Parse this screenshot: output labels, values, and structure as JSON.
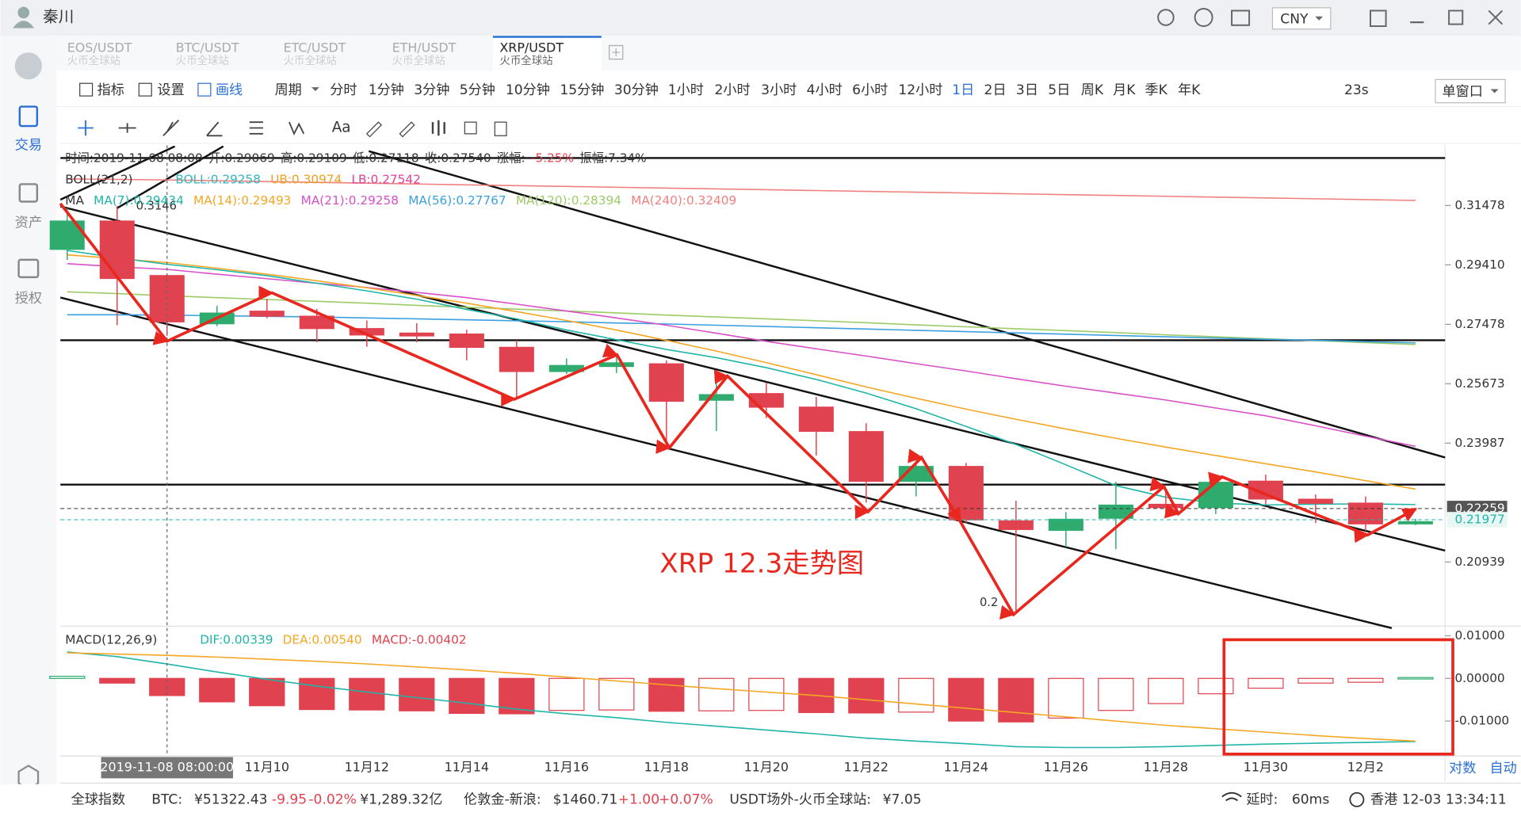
{
  "window": {
    "user": "秦川",
    "currency": "CNY"
  },
  "tabs": [
    {
      "pair": "EOS/USDT",
      "exchange": "火币全球站"
    },
    {
      "pair": "BTC/USDT",
      "exchange": "火币全球站"
    },
    {
      "pair": "ETC/USDT",
      "exchange": "火币全球站"
    },
    {
      "pair": "ETH/USDT",
      "exchange": "火币全球站"
    },
    {
      "pair": "XRP/USDT",
      "exchange": "火币全球站"
    }
  ],
  "active_tab": 4,
  "sidebar": [
    "交易",
    "资产",
    "授权"
  ],
  "toolbar": {
    "tools": [
      "指标",
      "设置",
      "画线"
    ],
    "period_label": "周期",
    "periods": [
      "分时",
      "1分钟",
      "3分钟",
      "5分钟",
      "10分钟",
      "15分钟",
      "30分钟",
      "1小时",
      "2小时",
      "3小时",
      "4小时",
      "6小时",
      "12小时",
      "1日",
      "2日",
      "3日",
      "5日",
      "周K",
      "月K",
      "季K",
      "年K"
    ],
    "active_period": 13,
    "countdown": "23s",
    "window_mode": "单窗口",
    "text_tool": "Aa"
  },
  "legend": {
    "time_row": [
      {
        "text": "时间:2019-11-08 08:00",
        "color": "#333"
      },
      {
        "text": "开:0.29069",
        "color": "#333"
      },
      {
        "text": "高:0.29109",
        "color": "#333"
      },
      {
        "text": "低:0.27118",
        "color": "#333"
      },
      {
        "text": "收:0.27540",
        "color": "#333"
      },
      {
        "text": "涨幅:",
        "color": "#333"
      },
      {
        "text": "-5.25%",
        "color": "#e0424f"
      },
      {
        "text": "振幅:7.34%",
        "color": "#333"
      }
    ],
    "boll_row": [
      {
        "text": "BOLL(21,2)",
        "color": "#333"
      },
      {
        "text": "BOLL:0.29258",
        "color": "#34b6c2"
      },
      {
        "text": "UB:0.30974",
        "color": "#f0a020"
      },
      {
        "text": "LB:0.27542",
        "color": "#e0409a"
      }
    ],
    "ma_row": [
      {
        "text": "MA",
        "color": "#333"
      },
      {
        "text": "MA(7):0.29434",
        "color": "#1fb5a8"
      },
      {
        "text": "MA(14):0.29493",
        "color": "#f5a623"
      },
      {
        "text": "MA(21):0.29258",
        "color": "#d94fc8"
      },
      {
        "text": "MA(56):0.27767",
        "color": "#3aa0e0"
      },
      {
        "text": "MA(120):0.28394",
        "color": "#9ccc65"
      },
      {
        "text": "MA(240):0.32409",
        "color": "#f08080"
      }
    ],
    "macd_row": [
      {
        "text": "MACD(12,26,9)",
        "color": "#333"
      },
      {
        "text": "DIF:0.00339",
        "color": "#1fb5a8"
      },
      {
        "text": "DEA:0.00540",
        "color": "#f5a623"
      },
      {
        "text": "MACD:-0.00402",
        "color": "#e0424f"
      }
    ]
  },
  "annotations": {
    "title": "XRP 12.3走势图",
    "high_label": "0.3146",
    "low_label": "0.2",
    "crosshair_label": "2019-11-08 08:00:00"
  },
  "axis_modes": [
    "对数",
    "自动"
  ],
  "status": [
    {
      "text": "全球指数",
      "color": "#333"
    },
    {
      "text": "BTC:",
      "color": "#333"
    },
    {
      "text": "¥51322.43",
      "color": "#333"
    },
    {
      "text": "-9.95",
      "color": "#e0424f"
    },
    {
      "text": "-0.02%",
      "color": "#e0424f"
    },
    {
      "text": "¥1,289.32亿",
      "color": "#333"
    },
    {
      "text": "伦敦金-新浪:",
      "color": "#333"
    },
    {
      "text": "$1460.71",
      "color": "#333"
    },
    {
      "text": "+1.00",
      "color": "#e0424f"
    },
    {
      "text": "+0.07%",
      "color": "#e0424f"
    },
    {
      "text": "USDT场外-火币全球站:",
      "color": "#333"
    },
    {
      "text": "¥7.05",
      "color": "#333"
    },
    {
      "text": "延时:",
      "color": "#333"
    },
    {
      "text": "60ms",
      "color": "#333"
    },
    {
      "text": "香港 12-03 13:34:11",
      "color": "#333"
    }
  ],
  "chart_data": [
    {
      "type": "candlestick",
      "log": true,
      "ylim": [
        0.1948,
        0.3353
      ],
      "yticks": [
        0.31478,
        {
          "value": 0.2941,
          "label": "0.29410"
        },
        0.27478,
        0.25673,
        0.23987,
        0.20939
      ],
      "price_markers": [
        {
          "value": 0.22259,
          "color": "#333"
        },
        {
          "value": 0.21977,
          "color": "#1fb5a8"
        }
      ],
      "up_color": "#2fab6e",
      "down_color": "#e0424f",
      "categories": [
        null,
        null,
        null,
        null,
        "11月10",
        null,
        "11月12",
        null,
        "11月14",
        null,
        "11月16",
        null,
        "11月18",
        null,
        "11月20",
        null,
        "11月22",
        null,
        "11月24",
        null,
        "11月26",
        null,
        "11月28",
        null,
        "11月30",
        null,
        "12月2",
        null
      ],
      "open": [
        0.2992,
        0.3094,
        0.2907,
        0.2748,
        0.2791,
        0.2775,
        0.2736,
        0.2722,
        0.2719,
        0.2678,
        0.2602,
        0.2617,
        0.2628,
        0.2518,
        0.254,
        0.2501,
        0.2432,
        0.2295,
        0.2337,
        0.2196,
        0.217,
        0.22,
        0.2238,
        0.2227,
        0.2298,
        0.2251,
        0.2241,
        0.2186
      ],
      "high": [
        0.3138,
        0.3146,
        0.2911,
        0.2807,
        0.2829,
        0.2797,
        0.276,
        0.2751,
        0.2731,
        0.2698,
        0.2643,
        0.2655,
        0.2637,
        0.257,
        0.257,
        0.2529,
        0.2454,
        0.236,
        0.2345,
        0.2246,
        0.2217,
        0.2295,
        0.2274,
        0.2314,
        0.2314,
        0.2262,
        0.2257,
        0.22
      ],
      "low": [
        0.2958,
        0.2745,
        0.2712,
        0.2742,
        0.2767,
        0.2692,
        0.2678,
        0.2692,
        0.2637,
        0.2526,
        0.2596,
        0.2599,
        0.2386,
        0.2432,
        0.2468,
        0.2365,
        0.2241,
        0.2257,
        0.2189,
        0.1976,
        0.213,
        0.2125,
        0.2212,
        0.2212,
        0.2236,
        0.2189,
        0.217,
        0.2184
      ],
      "close": [
        0.3094,
        0.2894,
        0.2754,
        0.2785,
        0.2772,
        0.2733,
        0.2713,
        0.271,
        0.2675,
        0.2602,
        0.2623,
        0.2631,
        0.2515,
        0.2537,
        0.2498,
        0.243,
        0.2295,
        0.2337,
        0.2196,
        0.2172,
        0.22,
        0.2236,
        0.2227,
        0.2295,
        0.2249,
        0.2238,
        0.2186,
        0.2194
      ],
      "series": [
        {
          "color": "#f08080",
          "values": [
            0.3245,
            0.3243,
            0.3241,
            0.3238,
            0.3235,
            0.3232,
            0.3229,
            0.3226,
            0.3223,
            0.322,
            0.3217,
            0.3214,
            0.3211,
            0.3208,
            0.3205,
            0.3202,
            0.3199,
            0.3196,
            0.3193,
            0.319,
            0.3187,
            0.3184,
            0.3181,
            0.3178,
            0.3175,
            0.3172,
            0.3169,
            0.3166
          ]
        },
        {
          "color": "#9ccc65",
          "values": [
            0.2852,
            0.2846,
            0.2839,
            0.2833,
            0.2827,
            0.2821,
            0.2815,
            0.2808,
            0.2802,
            0.2796,
            0.279,
            0.2784,
            0.2777,
            0.2771,
            0.2765,
            0.2759,
            0.2753,
            0.2746,
            0.274,
            0.2734,
            0.2728,
            0.2722,
            0.2715,
            0.2709,
            0.2703,
            0.2697,
            0.2691,
            0.2685
          ]
        },
        {
          "color": "#3aa0e0",
          "values": [
            0.2778,
            0.2778,
            0.2777,
            0.2775,
            0.2773,
            0.2771,
            0.2768,
            0.2765,
            0.2762,
            0.2759,
            0.2756,
            0.2752,
            0.2749,
            0.2745,
            0.2741,
            0.2737,
            0.2733,
            0.2729,
            0.2725,
            0.2721,
            0.2717,
            0.2713,
            0.2709,
            0.2705,
            0.2701,
            0.2698,
            0.2694,
            0.269
          ]
        },
        {
          "color": "#d94fc8",
          "values": [
            0.2945,
            0.2935,
            0.2926,
            0.291,
            0.2895,
            0.288,
            0.2866,
            0.285,
            0.2833,
            0.2812,
            0.279,
            0.2768,
            0.2745,
            0.272,
            0.2695,
            0.2672,
            0.265,
            0.2627,
            0.2605,
            0.2582,
            0.256,
            0.254,
            0.252,
            0.2497,
            0.2475,
            0.2447,
            0.2418,
            0.239
          ]
        },
        {
          "color": "#f5a623",
          "values": [
            0.2975,
            0.2962,
            0.2949,
            0.293,
            0.291,
            0.2888,
            0.2865,
            0.284,
            0.2815,
            0.2788,
            0.276,
            0.273,
            0.2698,
            0.2665,
            0.263,
            0.2594,
            0.2558,
            0.2525,
            0.2494,
            0.2465,
            0.2438,
            0.2412,
            0.2388,
            0.2365,
            0.2343,
            0.2321,
            0.2298,
            0.2276
          ]
        },
        {
          "color": "#1fb5a8",
          "values": [
            0.299,
            0.2965,
            0.2943,
            0.2925,
            0.2905,
            0.288,
            0.2855,
            0.2828,
            0.2795,
            0.2765,
            0.273,
            0.27,
            0.267,
            0.2645,
            0.2615,
            0.258,
            0.254,
            0.2495,
            0.2445,
            0.2395,
            0.234,
            0.2285,
            0.2255,
            0.224,
            0.2235,
            0.2237,
            0.2238,
            0.2236
          ]
        }
      ]
    },
    {
      "type": "macd",
      "ylim": [
        -0.0182,
        0.0118
      ],
      "yticks": [
        {
          "value": 0.01,
          "label": "0.01000"
        },
        {
          "value": 0,
          "label": "0.00000"
        },
        {
          "value": -0.01,
          "label": "-0.01000"
        }
      ],
      "up_color": "#2fab6e",
      "down_color": "#e0424f",
      "values": [
        0.0005,
        -0.0011,
        -0.00402,
        -0.0055,
        -0.0064,
        -0.0073,
        -0.0074,
        -0.0076,
        -0.0082,
        -0.0083,
        -0.0075,
        -0.0074,
        -0.0077,
        -0.0076,
        -0.0075,
        -0.008,
        -0.0081,
        -0.0079,
        -0.01,
        -0.0102,
        -0.0093,
        -0.0075,
        -0.0059,
        -0.0036,
        -0.0023,
        -0.0011,
        -0.0009,
        0.0002
      ],
      "series": [
        {
          "color": "#1fb5a8",
          "values": [
            0.0062,
            0.0051,
            0.00339,
            0.0015,
            -0.0002,
            -0.0018,
            -0.0032,
            -0.0045,
            -0.0058,
            -0.0072,
            -0.0083,
            -0.0092,
            -0.0103,
            -0.0112,
            -0.0121,
            -0.013,
            -0.014,
            -0.0147,
            -0.0153,
            -0.016,
            -0.0162,
            -0.0162,
            -0.016,
            -0.0157,
            -0.0154,
            -0.0152,
            -0.015,
            -0.0148
          ]
        },
        {
          "color": "#f5a623",
          "values": [
            0.006,
            0.0057,
            0.0054,
            0.005,
            0.0045,
            0.004,
            0.0034,
            0.0027,
            0.002,
            0.0012,
            0.0003,
            -0.0006,
            -0.0015,
            -0.0024,
            -0.0032,
            -0.004,
            -0.005,
            -0.006,
            -0.007,
            -0.008,
            -0.009,
            -0.01,
            -0.011,
            -0.0118,
            -0.0126,
            -0.0134,
            -0.0141,
            -0.0147
          ]
        }
      ]
    }
  ]
}
